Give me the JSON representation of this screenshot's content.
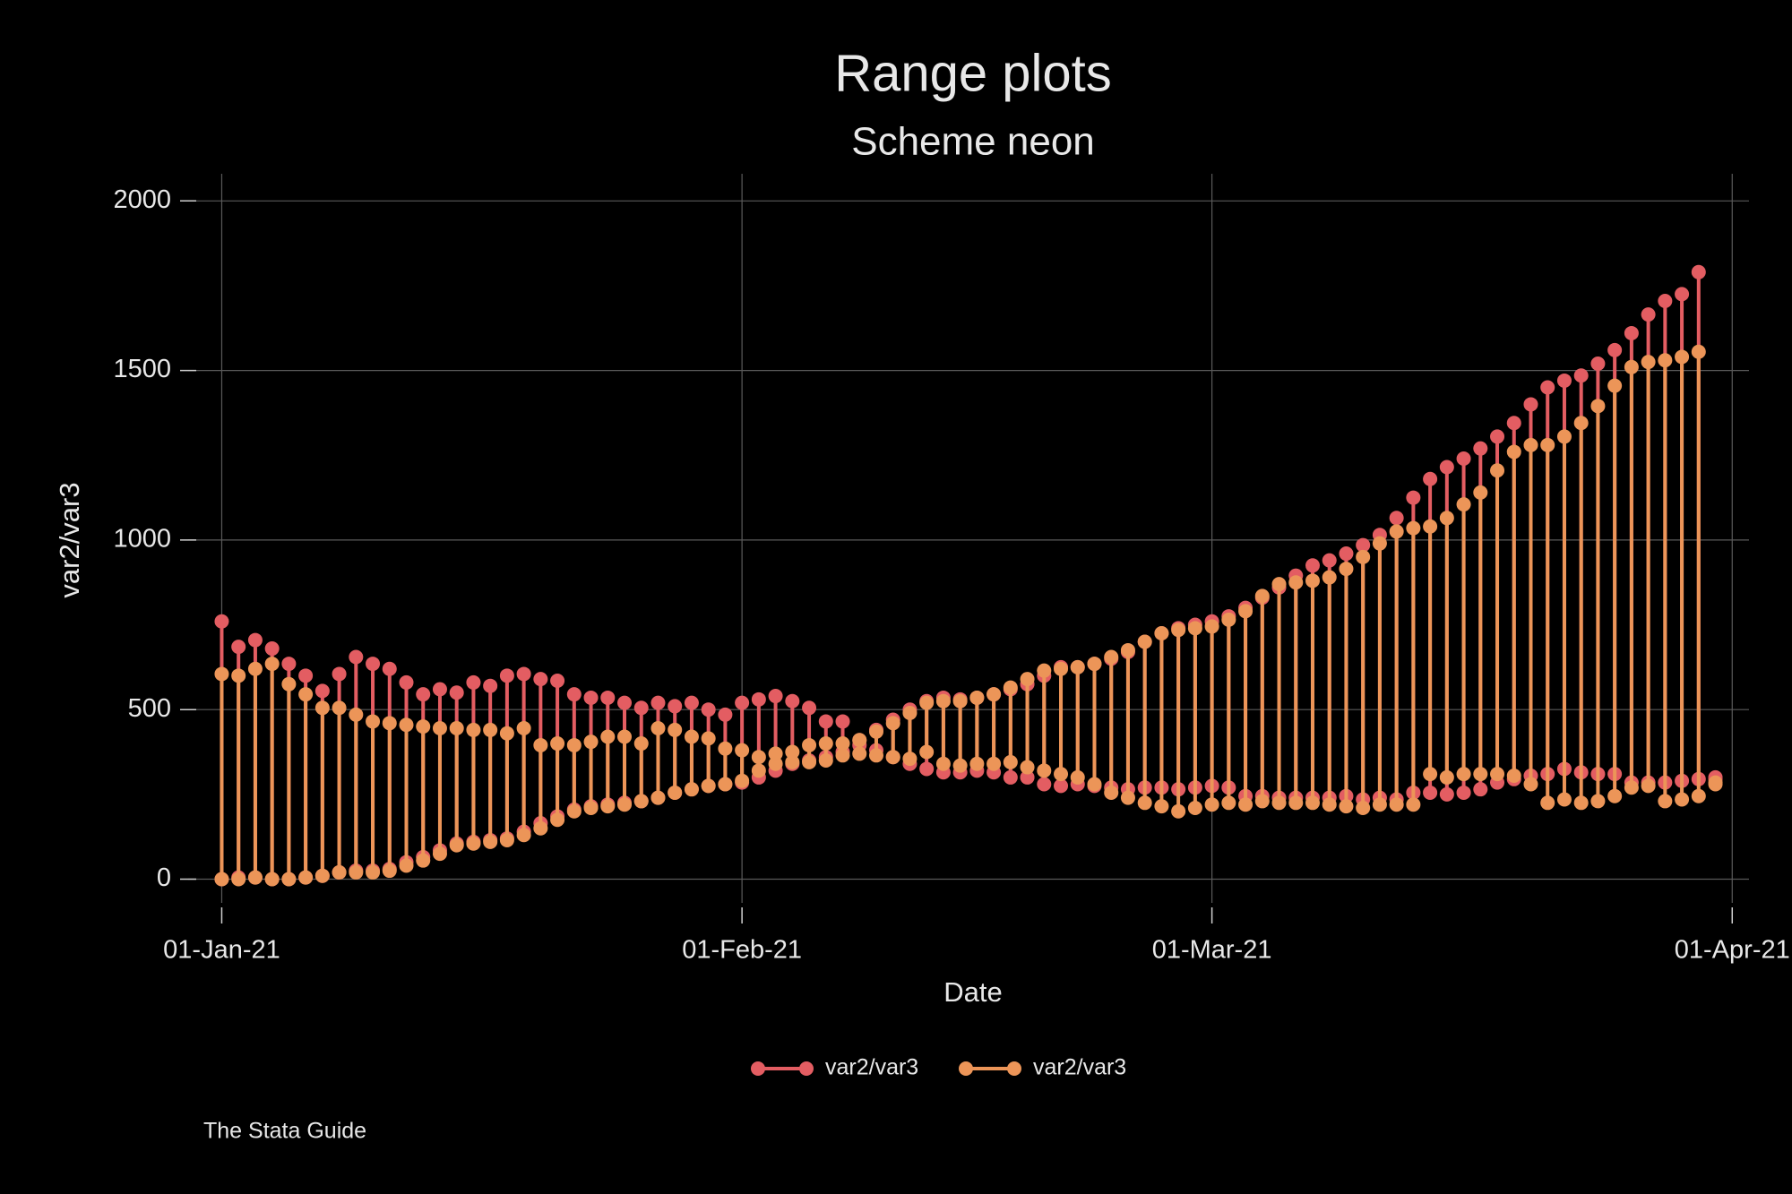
{
  "chart_data": {
    "type": "rcap",
    "title": "Range plots",
    "subtitle": "Scheme neon",
    "x_label": "Date",
    "y_label": "var2/var3",
    "note": "The Stata Guide",
    "x": [
      "2021-01-01",
      "2021-01-02",
      "2021-01-03",
      "2021-01-04",
      "2021-01-05",
      "2021-01-06",
      "2021-01-07",
      "2021-01-08",
      "2021-01-09",
      "2021-01-10",
      "2021-01-11",
      "2021-01-12",
      "2021-01-13",
      "2021-01-14",
      "2021-01-15",
      "2021-01-16",
      "2021-01-17",
      "2021-01-18",
      "2021-01-19",
      "2021-01-20",
      "2021-01-21",
      "2021-01-22",
      "2021-01-23",
      "2021-01-24",
      "2021-01-25",
      "2021-01-26",
      "2021-01-27",
      "2021-01-28",
      "2021-01-29",
      "2021-01-30",
      "2021-01-31",
      "2021-02-01",
      "2021-02-02",
      "2021-02-03",
      "2021-02-04",
      "2021-02-05",
      "2021-02-06",
      "2021-02-07",
      "2021-02-08",
      "2021-02-09",
      "2021-02-10",
      "2021-02-11",
      "2021-02-12",
      "2021-02-13",
      "2021-02-14",
      "2021-02-15",
      "2021-02-16",
      "2021-02-17",
      "2021-02-18",
      "2021-02-19",
      "2021-02-20",
      "2021-02-21",
      "2021-02-22",
      "2021-02-23",
      "2021-02-24",
      "2021-02-25",
      "2021-02-26",
      "2021-02-27",
      "2021-02-28",
      "2021-03-01",
      "2021-03-02",
      "2021-03-03",
      "2021-03-04",
      "2021-03-05",
      "2021-03-06",
      "2021-03-07",
      "2021-03-08",
      "2021-03-09",
      "2021-03-10",
      "2021-03-11",
      "2021-03-12",
      "2021-03-13",
      "2021-03-14",
      "2021-03-15",
      "2021-03-16",
      "2021-03-17",
      "2021-03-18",
      "2021-03-19",
      "2021-03-20",
      "2021-03-21",
      "2021-03-22",
      "2021-03-23",
      "2021-03-24",
      "2021-03-25",
      "2021-03-26",
      "2021-03-27",
      "2021-03-28",
      "2021-03-29",
      "2021-03-30",
      "2021-03-31"
    ],
    "series": [
      {
        "name": "var2/var3",
        "color": "#e35d62",
        "high": [
          760,
          685,
          705,
          680,
          635,
          600,
          555,
          605,
          655,
          635,
          620,
          580,
          545,
          560,
          550,
          580,
          570,
          600,
          605,
          590,
          585,
          545,
          535,
          535,
          520,
          505,
          520,
          510,
          520,
          500,
          485,
          520,
          530,
          540,
          525,
          505,
          465,
          465,
          410,
          440,
          470,
          500,
          525,
          535,
          530,
          535,
          545,
          560,
          575,
          600,
          625,
          625,
          635,
          650,
          670,
          700,
          725,
          740,
          750,
          760,
          775,
          800,
          830,
          860,
          895,
          925,
          940,
          960,
          985,
          1015,
          1065,
          1125,
          1180,
          1215,
          1240,
          1270,
          1305,
          1345,
          1400,
          1450,
          1470,
          1485,
          1520,
          1560,
          1610,
          1665,
          1705,
          1725,
          1790,
          300
        ],
        "low": [
          0,
          5,
          5,
          0,
          0,
          5,
          10,
          20,
          25,
          25,
          30,
          50,
          65,
          85,
          105,
          110,
          115,
          120,
          140,
          165,
          185,
          205,
          215,
          220,
          225,
          230,
          240,
          255,
          265,
          275,
          280,
          285,
          300,
          320,
          340,
          350,
          360,
          375,
          395,
          380,
          360,
          340,
          325,
          315,
          315,
          320,
          315,
          300,
          300,
          280,
          275,
          280,
          275,
          270,
          265,
          270,
          270,
          265,
          270,
          275,
          270,
          245,
          245,
          240,
          240,
          240,
          240,
          245,
          235,
          240,
          235,
          255,
          255,
          250,
          255,
          265,
          285,
          295,
          305,
          310,
          325,
          315,
          310,
          310,
          285,
          285,
          285,
          290,
          295,
          295
        ]
      },
      {
        "name": "var2/var3",
        "color": "#ec9558",
        "high": [
          605,
          600,
          620,
          635,
          575,
          545,
          505,
          505,
          485,
          465,
          460,
          455,
          450,
          445,
          445,
          440,
          440,
          430,
          445,
          395,
          400,
          395,
          405,
          420,
          420,
          400,
          445,
          440,
          420,
          415,
          385,
          380,
          360,
          370,
          375,
          395,
          400,
          400,
          410,
          435,
          460,
          490,
          520,
          525,
          525,
          535,
          545,
          565,
          590,
          615,
          620,
          625,
          635,
          655,
          675,
          700,
          725,
          735,
          740,
          745,
          765,
          790,
          835,
          870,
          875,
          880,
          890,
          915,
          950,
          990,
          1025,
          1035,
          1040,
          1065,
          1105,
          1140,
          1205,
          1260,
          1280,
          1280,
          1305,
          1345,
          1395,
          1455,
          1510,
          1525,
          1530,
          1540,
          1555,
          285
        ],
        "low": [
          0,
          0,
          5,
          0,
          0,
          5,
          10,
          20,
          20,
          20,
          25,
          40,
          55,
          75,
          100,
          105,
          110,
          115,
          130,
          150,
          175,
          200,
          210,
          215,
          220,
          230,
          240,
          255,
          265,
          275,
          280,
          290,
          320,
          340,
          345,
          345,
          350,
          365,
          370,
          365,
          360,
          355,
          375,
          340,
          335,
          340,
          340,
          345,
          330,
          320,
          310,
          300,
          280,
          255,
          240,
          225,
          215,
          200,
          210,
          220,
          225,
          220,
          230,
          225,
          225,
          225,
          220,
          215,
          210,
          220,
          220,
          220,
          310,
          300,
          310,
          310,
          310,
          305,
          280,
          225,
          235,
          225,
          230,
          245,
          270,
          275,
          230,
          235,
          245,
          280
        ]
      }
    ],
    "xlim": [
      "2020-12-30",
      "2021-04-02"
    ],
    "xticks": [
      {
        "value": "2021-01-01",
        "label": "01-Jan-21"
      },
      {
        "value": "2021-02-01",
        "label": "01-Feb-21"
      },
      {
        "value": "2021-03-01",
        "label": "01-Mar-21"
      },
      {
        "value": "2021-04-01",
        "label": "01-Apr-21"
      }
    ],
    "ylim": [
      -70,
      2080
    ],
    "yticks": [
      0,
      500,
      1000,
      1500,
      2000
    ],
    "grid": true,
    "legend_position": "bottom"
  }
}
